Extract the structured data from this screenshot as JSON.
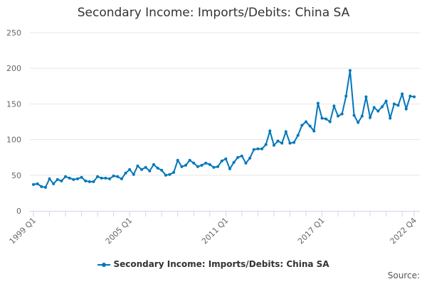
{
  "chart_data": {
    "type": "line",
    "title": "Secondary Income: Imports/Debits: China SA",
    "xlabel": "",
    "ylabel": "",
    "ylim": [
      0,
      250
    ],
    "yticks": [
      0,
      50,
      100,
      150,
      200,
      250
    ],
    "grid": true,
    "legend_position": "bottom",
    "x_start": "1999 Q1",
    "x_end": "2022 Q4",
    "xtick_labels": [
      "1999 Q1",
      "2005 Q1",
      "2011 Q1",
      "2017 Q1",
      "2022 Q4"
    ],
    "series": [
      {
        "name": "Secondary Income: Imports/Debits: China SA",
        "color": "#0077bb",
        "values": [
          37,
          38,
          34,
          33,
          45,
          38,
          44,
          42,
          48,
          46,
          44,
          45,
          47,
          42,
          41,
          41,
          48,
          46,
          46,
          45,
          49,
          48,
          45,
          53,
          58,
          51,
          63,
          58,
          61,
          56,
          65,
          60,
          57,
          50,
          51,
          54,
          71,
          62,
          64,
          71,
          67,
          62,
          64,
          67,
          65,
          61,
          62,
          70,
          73,
          59,
          68,
          75,
          77,
          67,
          74,
          86,
          87,
          87,
          93,
          112,
          92,
          98,
          95,
          111,
          95,
          96,
          106,
          120,
          125,
          119,
          112,
          151,
          130,
          129,
          125,
          147,
          133,
          136,
          161,
          197,
          134,
          124,
          133,
          160,
          131,
          145,
          140,
          146,
          154,
          130,
          150,
          148,
          164,
          143,
          161,
          160
        ]
      }
    ]
  },
  "source_label": "Source:"
}
